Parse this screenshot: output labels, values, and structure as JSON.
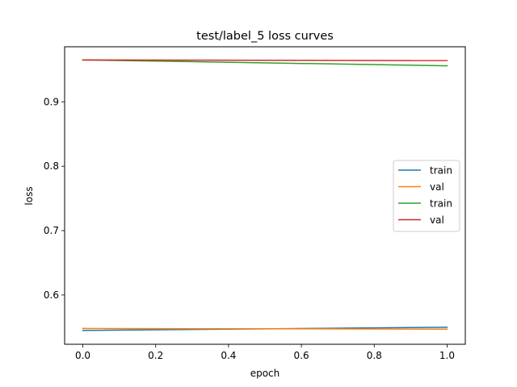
{
  "chart_data": {
    "type": "line",
    "title": "test/label_5 loss curves",
    "xlabel": "epoch",
    "ylabel": "loss",
    "xlim": [
      -0.05,
      1.05
    ],
    "ylim": [
      0.5235,
      0.9855
    ],
    "xticks": [
      0.0,
      0.2,
      0.4,
      0.6,
      0.8,
      1.0
    ],
    "xtick_labels": [
      "0.0",
      "0.2",
      "0.4",
      "0.6",
      "0.8",
      "1.0"
    ],
    "yticks": [
      0.6,
      0.7,
      0.8,
      0.9
    ],
    "ytick_labels": [
      "0.6",
      "0.7",
      "0.8",
      "0.9"
    ],
    "grid": false,
    "legend_position": "center-right",
    "series": [
      {
        "name": "train",
        "color": "#1f77b4",
        "x": [
          0,
          1
        ],
        "y": [
          0.545,
          0.55
        ]
      },
      {
        "name": "val",
        "color": "#ff7f0e",
        "x": [
          0,
          1
        ],
        "y": [
          0.548,
          0.547
        ]
      },
      {
        "name": "train",
        "color": "#2ca02c",
        "x": [
          0,
          1
        ],
        "y": [
          0.965,
          0.956
        ]
      },
      {
        "name": "val",
        "color": "#d62728",
        "x": [
          0,
          1
        ],
        "y": [
          0.965,
          0.964
        ]
      }
    ]
  }
}
